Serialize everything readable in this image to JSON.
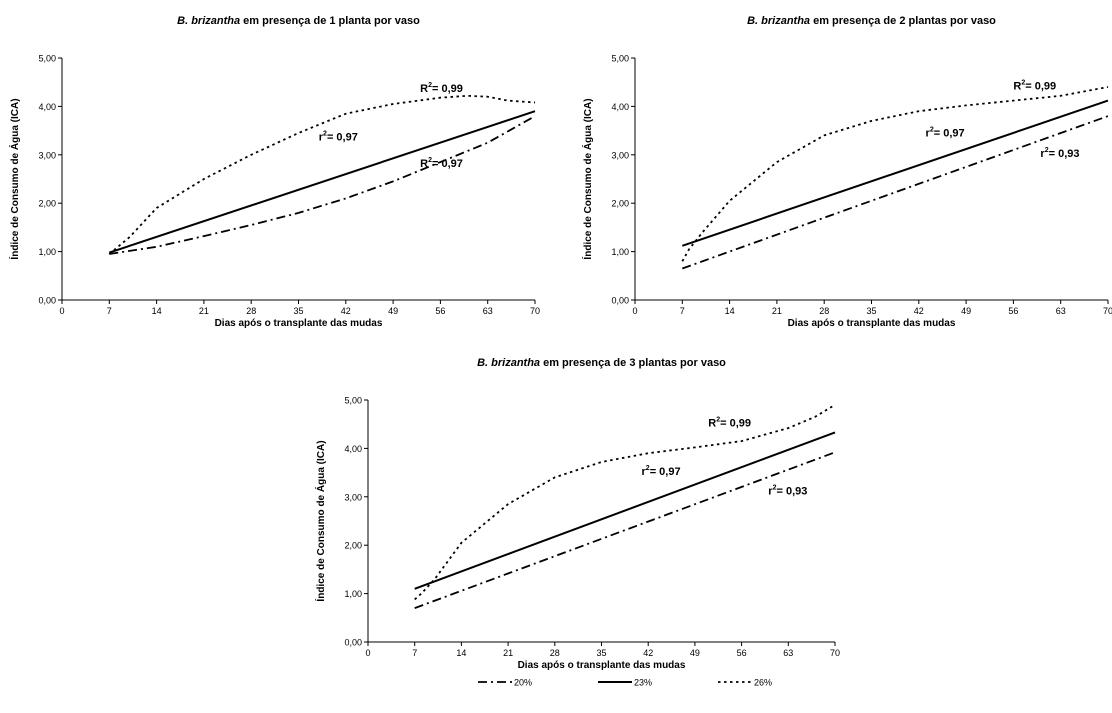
{
  "legend": {
    "placement": "bottom",
    "items": [
      {
        "key": "s20",
        "label": "20%"
      },
      {
        "key": "s23",
        "label": "23%"
      },
      {
        "key": "s26",
        "label": "26%"
      }
    ]
  },
  "chart_data": [
    {
      "type": "line",
      "title_italic": "B. brizantha",
      "title_rest": " em presença de 1 planta por vaso",
      "xlabel": "Dias após o transplante das mudas",
      "ylabel": "Índice de Consumo de Água (ICA)",
      "xlim": [
        0,
        70
      ],
      "ylim": [
        0,
        5
      ],
      "xticks": [
        0,
        7,
        14,
        21,
        28,
        35,
        42,
        49,
        56,
        63,
        70
      ],
      "yticks": [
        0,
        1,
        2,
        3,
        4,
        5
      ],
      "ytick_labels": [
        "0,00",
        "1,00",
        "2,00",
        "3,00",
        "4,00",
        "5,00"
      ],
      "grid": false,
      "series": [
        {
          "key": "s20",
          "name": "20%",
          "style": "dashdot",
          "x": [
            7,
            14,
            21,
            28,
            35,
            42,
            49,
            56,
            63,
            70
          ],
          "y": [
            0.95,
            1.1,
            1.32,
            1.55,
            1.8,
            2.1,
            2.45,
            2.85,
            3.25,
            3.8
          ]
        },
        {
          "key": "s23",
          "name": "23%",
          "style": "solid",
          "x": [
            7,
            70
          ],
          "y": [
            0.98,
            3.9
          ]
        },
        {
          "key": "s26",
          "name": "26%",
          "style": "dotted",
          "x": [
            7,
            10,
            14,
            21,
            28,
            35,
            42,
            49,
            56,
            60,
            63,
            66,
            70
          ],
          "y": [
            0.95,
            1.3,
            1.9,
            2.5,
            3.0,
            3.45,
            3.85,
            4.05,
            4.18,
            4.22,
            4.2,
            4.12,
            4.08
          ]
        }
      ],
      "annotations": [
        {
          "base": "R",
          "sup": "2",
          "value": "= 0,99",
          "x": 53,
          "y": 4.3
        },
        {
          "base": "r",
          "sup": "2",
          "value": "= 0,97",
          "x": 38,
          "y": 3.3
        },
        {
          "base": "R",
          "sup": "2",
          "value": "= 0,97",
          "x": 53,
          "y": 2.75
        }
      ]
    },
    {
      "type": "line",
      "title_italic": "B. brizantha",
      "title_rest": " em presença de 2 plantas por vaso",
      "xlabel": "Dias após o transplante das mudas",
      "ylabel": "Índice de Consumo de Água (ICA)",
      "xlim": [
        0,
        70
      ],
      "ylim": [
        0,
        5
      ],
      "xticks": [
        0,
        7,
        14,
        21,
        28,
        35,
        42,
        49,
        56,
        63,
        70
      ],
      "yticks": [
        0,
        1,
        2,
        3,
        4,
        5
      ],
      "ytick_labels": [
        "0,00",
        "1,00",
        "2,00",
        "3,00",
        "4,00",
        "5,00"
      ],
      "grid": false,
      "series": [
        {
          "key": "s20",
          "name": "20%",
          "style": "dashdot",
          "x": [
            7,
            70
          ],
          "y": [
            0.65,
            3.8
          ]
        },
        {
          "key": "s23",
          "name": "23%",
          "style": "solid",
          "x": [
            7,
            70
          ],
          "y": [
            1.12,
            4.12
          ]
        },
        {
          "key": "s26",
          "name": "26%",
          "style": "dotted",
          "x": [
            7,
            8,
            10,
            14,
            21,
            28,
            35,
            42,
            49,
            56,
            63,
            70
          ],
          "y": [
            0.8,
            1.05,
            1.4,
            2.05,
            2.85,
            3.4,
            3.7,
            3.9,
            4.02,
            4.12,
            4.22,
            4.4
          ]
        }
      ],
      "annotations": [
        {
          "base": "R",
          "sup": "2",
          "value": "= 0,99",
          "x": 56,
          "y": 4.35
        },
        {
          "base": "r",
          "sup": "2",
          "value": "= 0,97",
          "x": 43,
          "y": 3.38
        },
        {
          "base": "r",
          "sup": "2",
          "value": "= 0,93",
          "x": 60,
          "y": 2.95
        }
      ]
    },
    {
      "type": "line",
      "title_italic": "B. brizantha",
      "title_rest": " em presença de 3 plantas por vaso",
      "xlabel": "Dias após o transplante das mudas",
      "ylabel": "Índice de Consumo de Água (ICA)",
      "xlim": [
        0,
        70
      ],
      "ylim": [
        0,
        5
      ],
      "xticks": [
        0,
        7,
        14,
        21,
        28,
        35,
        42,
        49,
        56,
        63,
        70
      ],
      "yticks": [
        0,
        1,
        2,
        3,
        4,
        5
      ],
      "ytick_labels": [
        "0,00",
        "1,00",
        "2,00",
        "3,00",
        "4,00",
        "5,00"
      ],
      "grid": false,
      "series": [
        {
          "key": "s20",
          "name": "20%",
          "style": "dashdot",
          "x": [
            7,
            70
          ],
          "y": [
            0.7,
            3.92
          ]
        },
        {
          "key": "s23",
          "name": "23%",
          "style": "solid",
          "x": [
            7,
            70
          ],
          "y": [
            1.1,
            4.33
          ]
        },
        {
          "key": "s26",
          "name": "26%",
          "style": "dotted",
          "x": [
            7,
            8,
            10,
            14,
            21,
            28,
            35,
            42,
            49,
            56,
            63,
            67,
            70
          ],
          "y": [
            0.88,
            1.0,
            1.3,
            2.05,
            2.85,
            3.4,
            3.72,
            3.9,
            4.02,
            4.15,
            4.42,
            4.65,
            4.9
          ]
        }
      ],
      "annotations": [
        {
          "base": "R",
          "sup": "2",
          "value": "= 0,99",
          "x": 51,
          "y": 4.45
        },
        {
          "base": "r",
          "sup": "2",
          "value": "= 0,97",
          "x": 41,
          "y": 3.45
        },
        {
          "base": "r",
          "sup": "2",
          "value": "= 0,93",
          "x": 60,
          "y": 3.05
        }
      ]
    }
  ]
}
